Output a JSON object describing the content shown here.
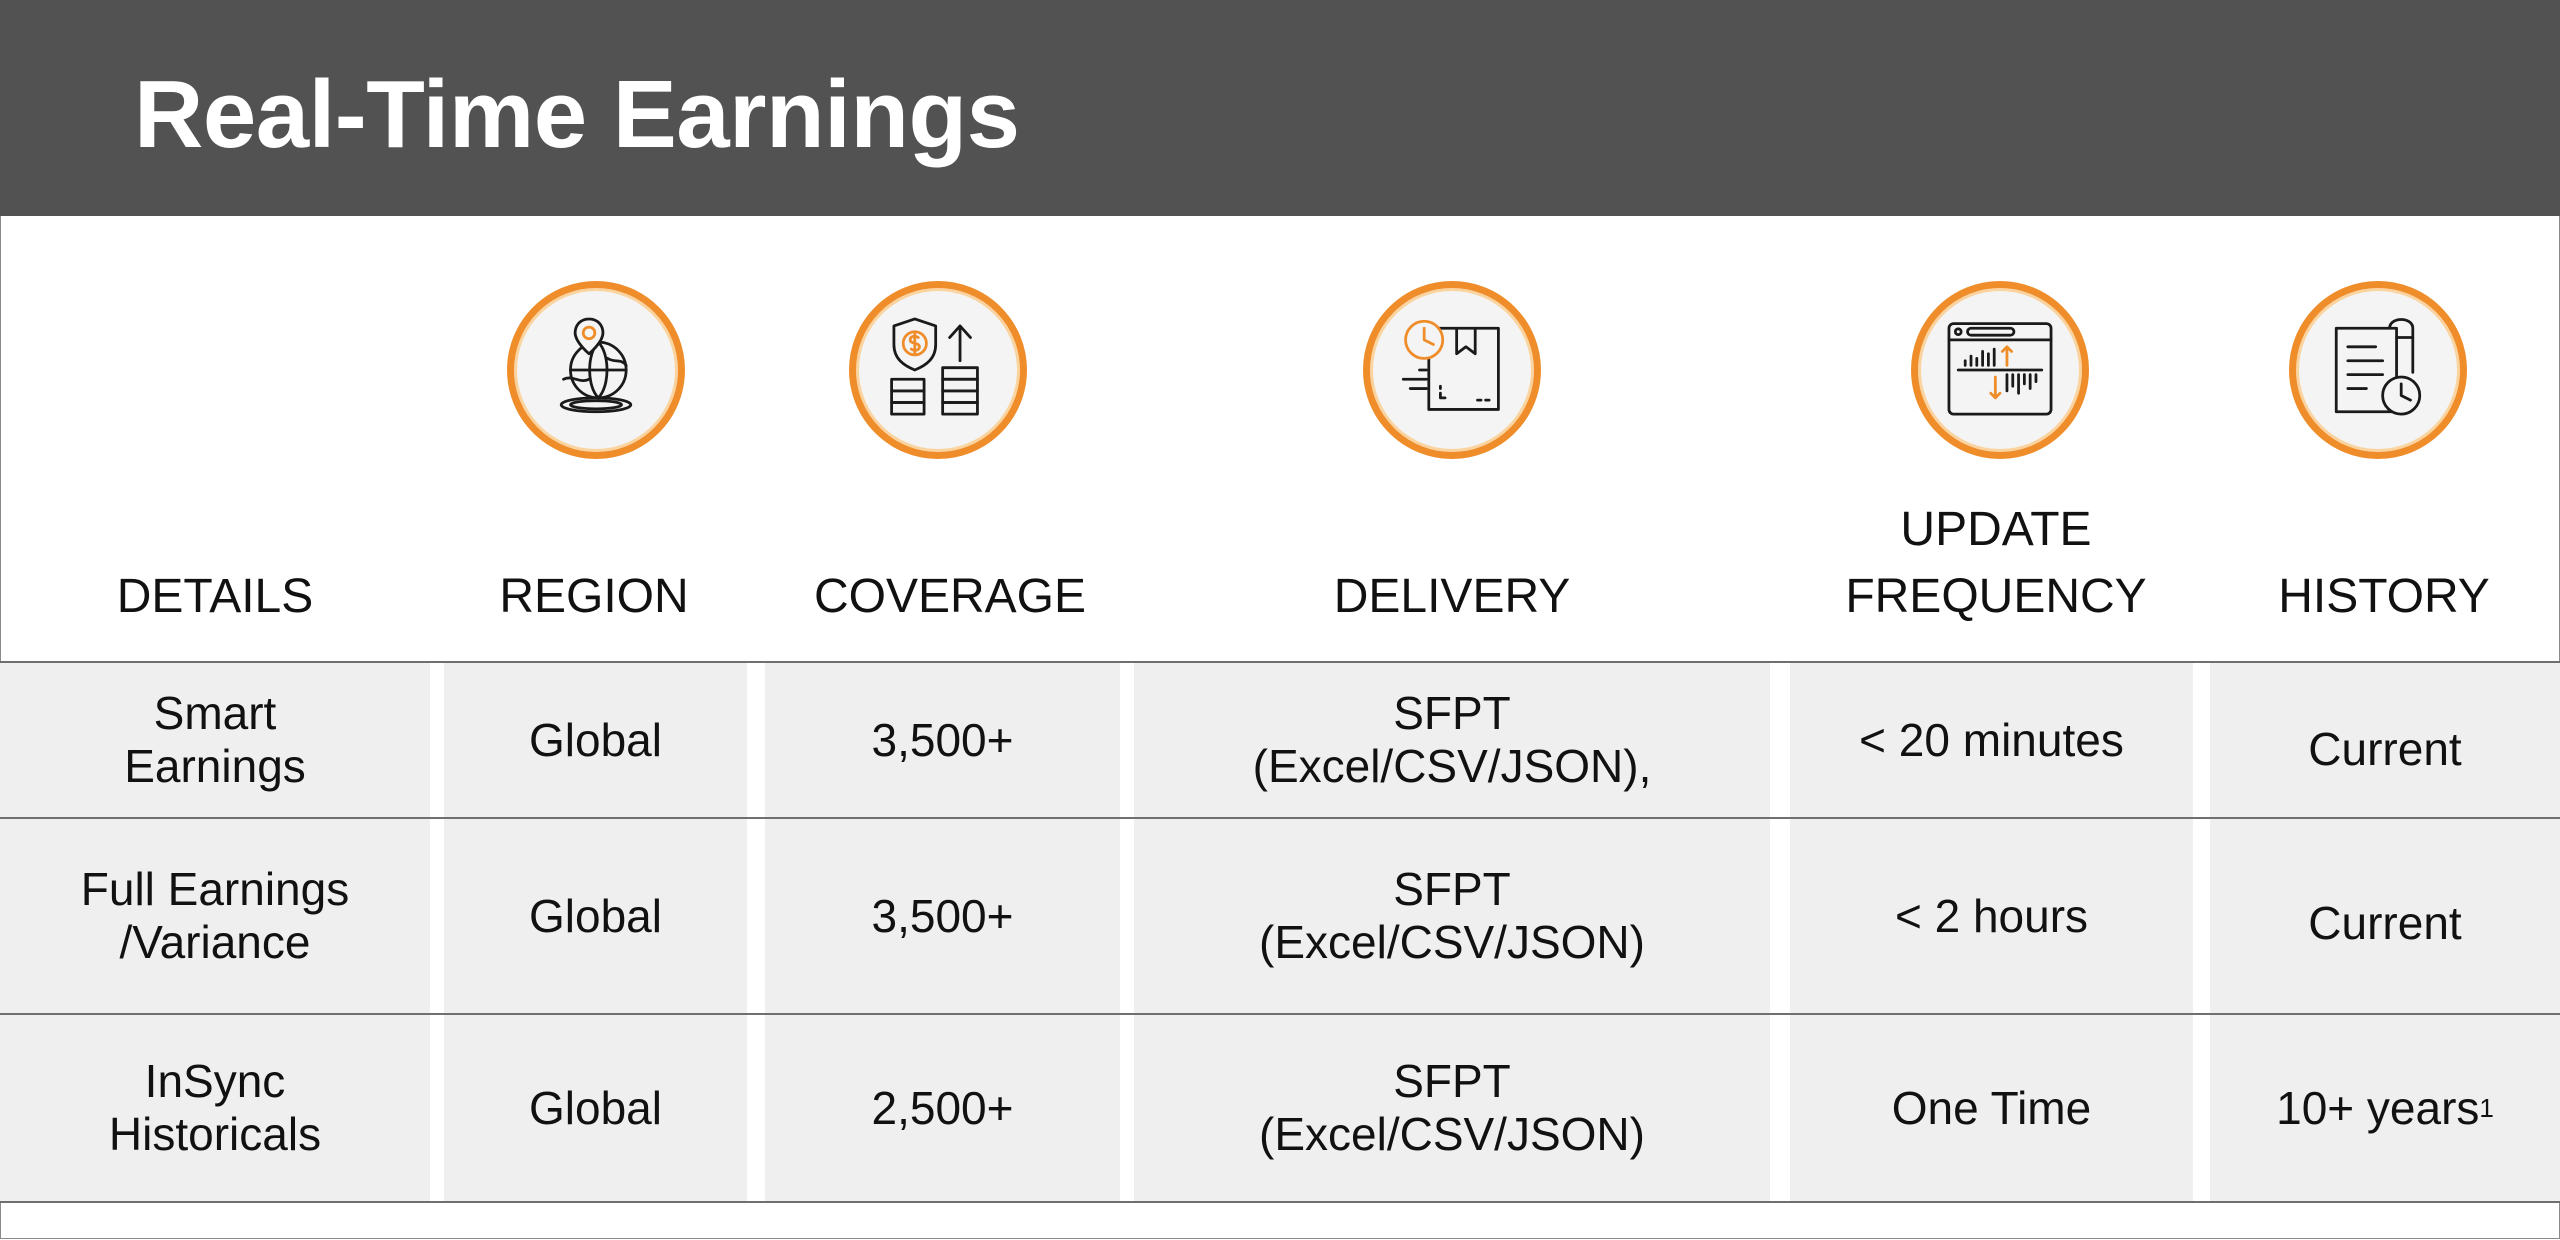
{
  "title": "Real-Time Earnings",
  "icons": [
    "globe-location-icon",
    "shield-coins-icon",
    "package-clock-icon",
    "dashboard-chart-icon",
    "document-clock-icon"
  ],
  "colors": {
    "header_bg": "#525252",
    "title_text": "#ffffff",
    "accent": "#ef8d2a",
    "cell_bg": "#efefef",
    "row_line": "#6f6f6f"
  },
  "columns": [
    "DETAILS",
    "REGION",
    "COVERAGE",
    "DELIVERY",
    "UPDATE\nFREQUENCY",
    "HISTORY"
  ],
  "rows": [
    {
      "details": "Smart\nEarnings",
      "region": "Global",
      "coverage": "3,500+",
      "delivery": "SFPT\n(Excel/CSV/JSON),",
      "frequency": "< 20 minutes",
      "history": "Current",
      "history_note": ""
    },
    {
      "details": "Full Earnings\n/Variance",
      "region": "Global",
      "coverage": "3,500+",
      "delivery": "SFPT\n(Excel/CSV/JSON)",
      "frequency": "< 2 hours",
      "history": "Current",
      "history_note": ""
    },
    {
      "details": "InSync\nHistoricals",
      "region": "Global",
      "coverage": "2,500+",
      "delivery": "SFPT\n(Excel/CSV/JSON)",
      "frequency": "One Time",
      "history": "10+ years",
      "history_note": "1"
    }
  ]
}
